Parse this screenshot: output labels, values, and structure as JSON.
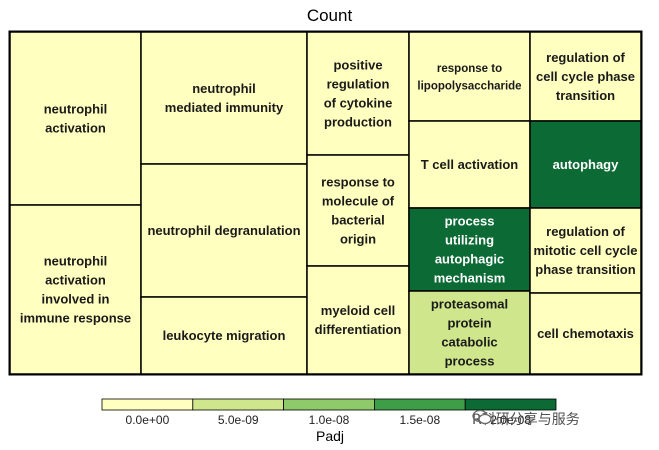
{
  "chart_data": {
    "type": "treemap",
    "title": "Count",
    "colorbar": {
      "title": "Padj",
      "ticks": [
        "0.0e+00",
        "5.0e-09",
        "1.0e-08",
        "1.5e-08",
        "2.0e-08"
      ],
      "bins": [
        "#ffffc0",
        "#cfe68c",
        "#8ec96a",
        "#3e9e48",
        "#0c6a35"
      ]
    },
    "groups": [
      {
        "name": "neutrophil activation",
        "items": [
          {
            "label": "neutrophil activation",
            "padj": 0.0
          },
          {
            "label": "neutrophil activation involved in immune response",
            "padj": 0.0
          }
        ]
      },
      {
        "name": "neutrophil mediated immunity",
        "items": [
          {
            "label": "neutrophil mediated immunity",
            "padj": 0.0
          },
          {
            "label": "neutrophil degranulation",
            "padj": 0.0
          },
          {
            "label": "leukocyte migration",
            "padj": 0.0
          }
        ]
      },
      {
        "name": "positive regulation of cytokine production",
        "items": [
          {
            "label": "positive regulation of cytokine production",
            "padj": 0.0
          },
          {
            "label": "response to molecule of bacterial origin",
            "padj": 0.0
          },
          {
            "label": "myeloid cell differentiation",
            "padj": 0.0
          }
        ]
      },
      {
        "name": "response to lipopolysaccharide",
        "items": [
          {
            "label": "response to lipopolysaccharide",
            "padj": 0.0
          },
          {
            "label": "T cell activation",
            "padj": 0.0
          },
          {
            "label": "process utilizing autophagic mechanism",
            "padj": 2e-08
          },
          {
            "label": "proteasomal protein catabolic process",
            "padj": 5e-09
          }
        ]
      },
      {
        "name": "regulation of cell cycle phase transition",
        "items": [
          {
            "label": "regulation of cell cycle phase transition",
            "padj": 0.0
          },
          {
            "label": "autophagy",
            "padj": 2e-08
          },
          {
            "label": "regulation of mitotic cell cycle phase transition",
            "padj": 0.0
          },
          {
            "label": "cell chemotaxis",
            "padj": 0.0
          }
        ]
      }
    ]
  },
  "watermark": "R科研分享与服务"
}
